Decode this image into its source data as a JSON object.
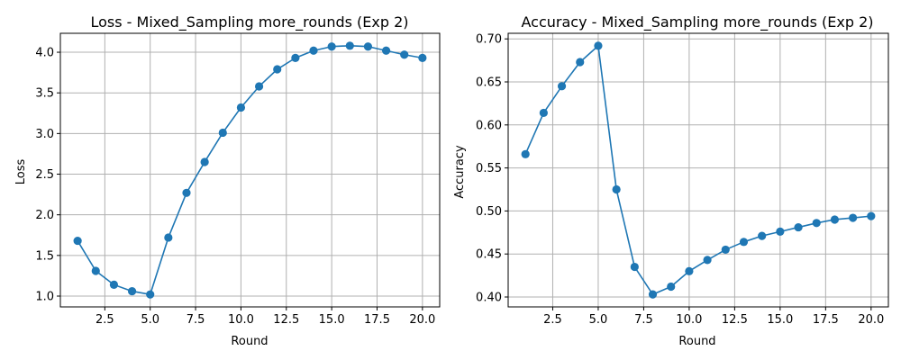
{
  "chart_data": [
    {
      "type": "line",
      "title": "Loss - Mixed_Sampling more_rounds (Exp 2)",
      "xlabel": "Round",
      "ylabel": "Loss",
      "x": [
        1,
        2,
        3,
        4,
        5,
        6,
        7,
        8,
        9,
        10,
        11,
        12,
        13,
        14,
        15,
        16,
        17,
        18,
        19,
        20
      ],
      "series": [
        {
          "name": "Loss",
          "color": "#1f77b4",
          "values": [
            1.68,
            1.31,
            1.14,
            1.06,
            1.02,
            1.72,
            2.27,
            2.65,
            3.01,
            3.32,
            3.58,
            3.79,
            3.93,
            4.02,
            4.07,
            4.08,
            4.07,
            4.02,
            3.97,
            3.93
          ]
        }
      ],
      "xlim": [
        0.05,
        20.95
      ],
      "ylim": [
        0.867,
        4.233
      ],
      "xticks": [
        2.5,
        5.0,
        7.5,
        10.0,
        12.5,
        15.0,
        17.5,
        20.0
      ],
      "xtick_labels": [
        "2.5",
        "5.0",
        "7.5",
        "10.0",
        "12.5",
        "15.0",
        "17.5",
        "20.0"
      ],
      "yticks": [
        1.0,
        1.5,
        2.0,
        2.5,
        3.0,
        3.5,
        4.0
      ],
      "ytick_labels": [
        "1.0",
        "1.5",
        "2.0",
        "2.5",
        "3.0",
        "3.5",
        "4.0"
      ],
      "grid": true
    },
    {
      "type": "line",
      "title": "Accuracy - Mixed_Sampling more_rounds (Exp 2)",
      "xlabel": "Round",
      "ylabel": "Accuracy",
      "x": [
        1,
        2,
        3,
        4,
        5,
        6,
        7,
        8,
        9,
        10,
        11,
        12,
        13,
        14,
        15,
        16,
        17,
        18,
        19,
        20
      ],
      "series": [
        {
          "name": "Accuracy",
          "color": "#1f77b4",
          "values": [
            0.566,
            0.614,
            0.645,
            0.673,
            0.692,
            0.525,
            0.435,
            0.403,
            0.412,
            0.43,
            0.443,
            0.455,
            0.464,
            0.471,
            0.476,
            0.481,
            0.486,
            0.49,
            0.492,
            0.494
          ]
        }
      ],
      "xlim": [
        0.05,
        20.95
      ],
      "ylim": [
        0.3885,
        0.7065
      ],
      "xticks": [
        2.5,
        5.0,
        7.5,
        10.0,
        12.5,
        15.0,
        17.5,
        20.0
      ],
      "xtick_labels": [
        "2.5",
        "5.0",
        "7.5",
        "10.0",
        "12.5",
        "15.0",
        "17.5",
        "20.0"
      ],
      "yticks": [
        0.4,
        0.45,
        0.5,
        0.55,
        0.6,
        0.65,
        0.7
      ],
      "ytick_labels": [
        "0.40",
        "0.45",
        "0.50",
        "0.55",
        "0.60",
        "0.65",
        "0.70"
      ],
      "grid": true
    }
  ]
}
